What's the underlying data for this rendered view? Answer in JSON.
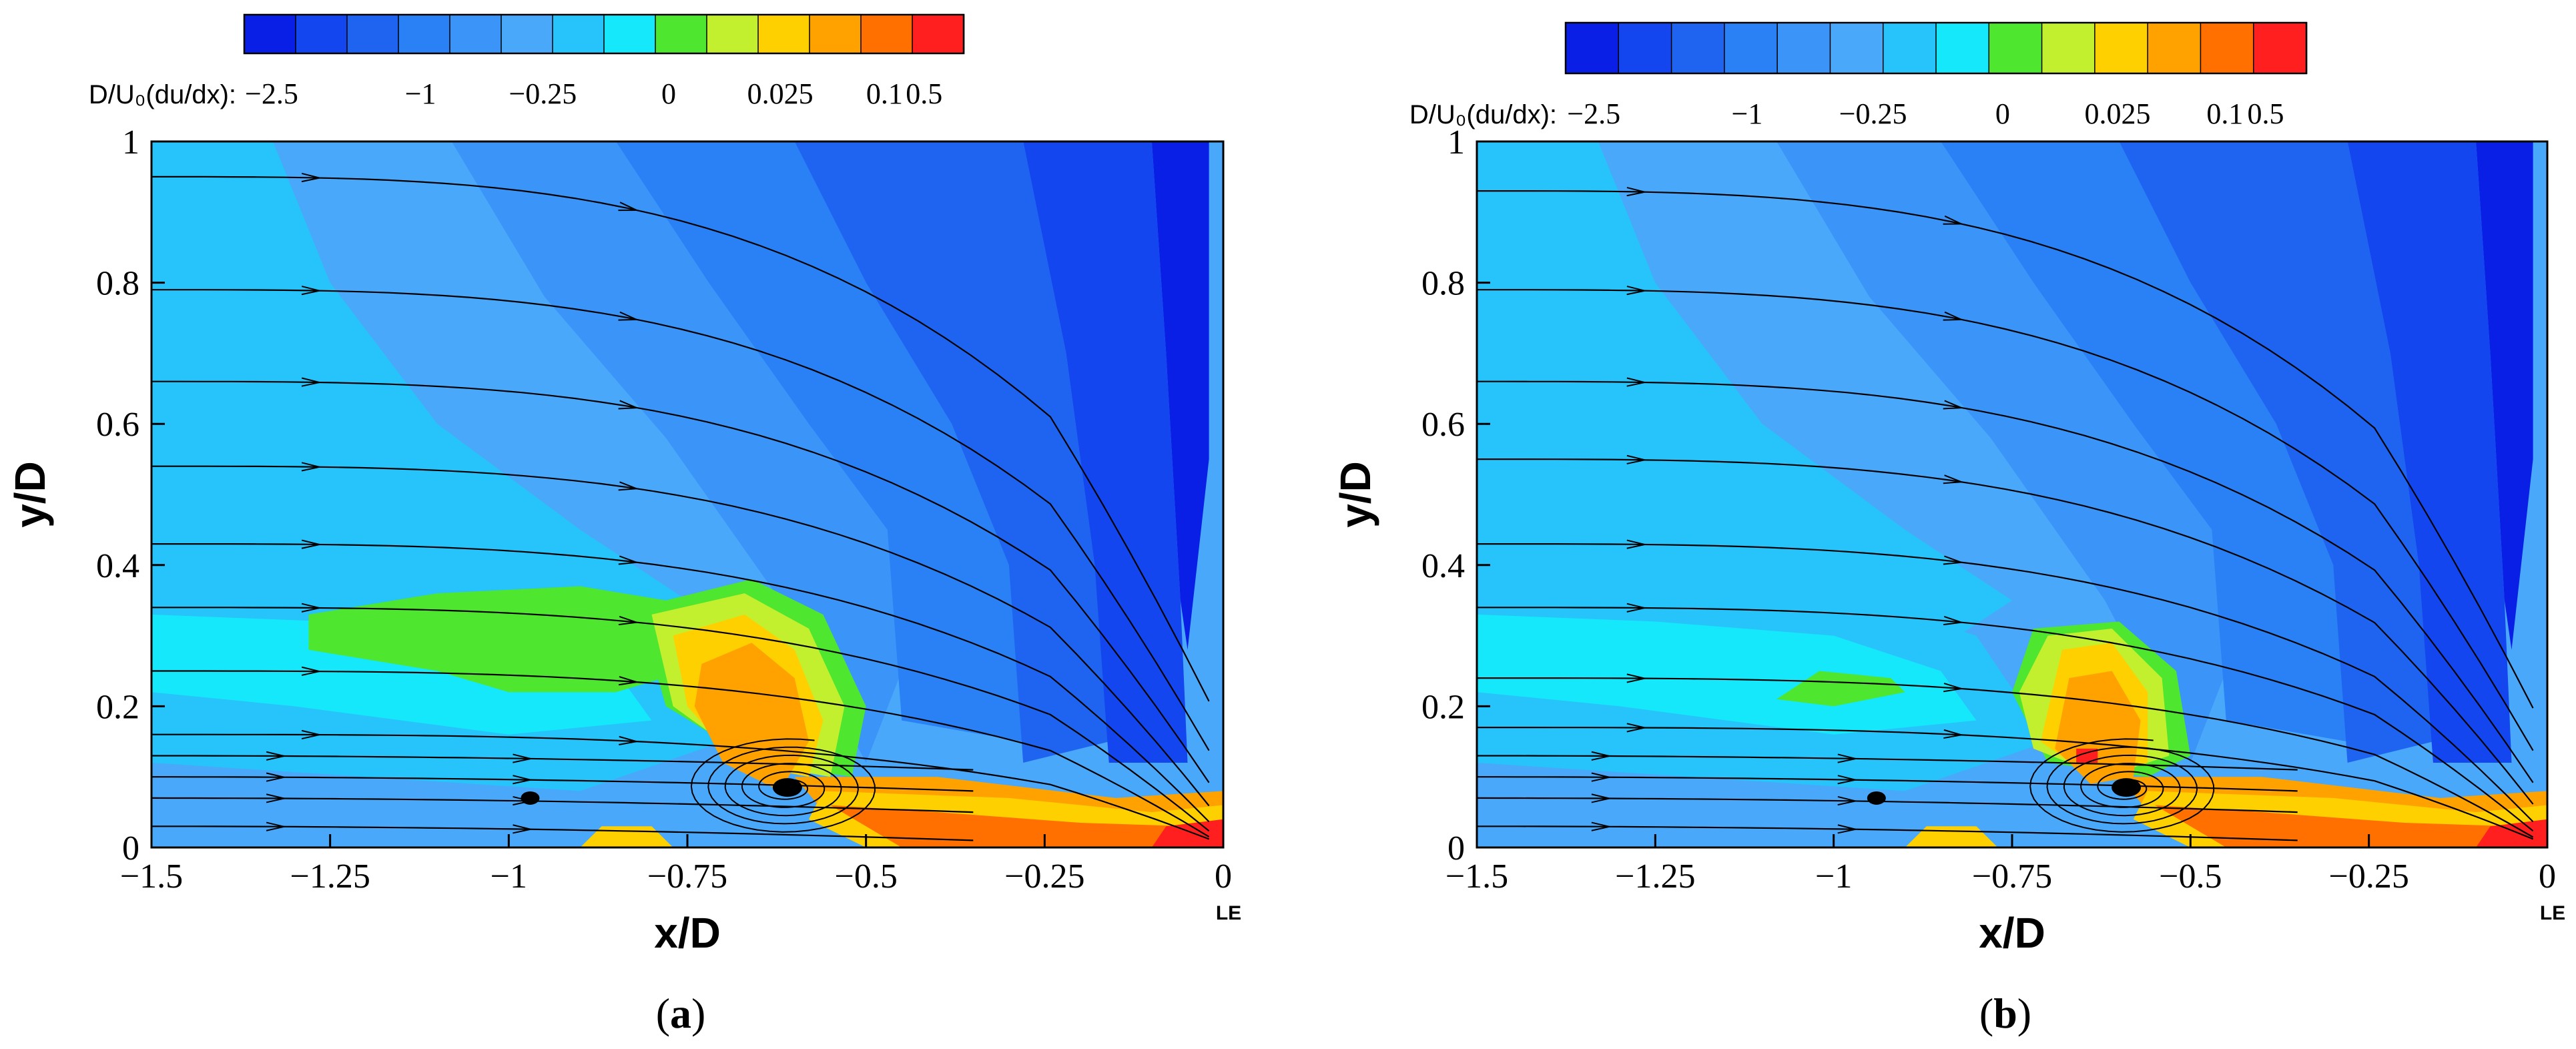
{
  "colorbar": {
    "label": "D/U₀(du/dx):",
    "tick_labels": [
      "−2.5",
      "−1",
      "−0.25",
      "0",
      "0.025",
      "0.1",
      "0.5"
    ],
    "colors": [
      "#0a1fe6",
      "#1446f0",
      "#1f64f0",
      "#2a80f5",
      "#3b94f7",
      "#4aa8fa",
      "#27c3fb",
      "#15e8fa",
      "#4ee62e",
      "#c2f02e",
      "#ffd000",
      "#ffa200",
      "#ff7000",
      "#ff1f1f"
    ]
  },
  "axes": {
    "xlabel": "x/D",
    "ylabel": "y/D",
    "x_ticks": [
      "−1.5",
      "−1.25",
      "−1",
      "−0.75",
      "−0.5",
      "−0.25",
      "0"
    ],
    "y_ticks": [
      "0",
      "0.2",
      "0.4",
      "0.6",
      "0.8",
      "1"
    ],
    "le_label": "LE"
  },
  "panels": [
    {
      "label": "(a)",
      "letter": "a",
      "paren_open": "(",
      "paren_close": ")"
    },
    {
      "label": "(b)",
      "letter": "b",
      "paren_open": "(",
      "paren_close": ")"
    }
  ],
  "chart_data": [
    {
      "type": "heatmap",
      "title": "",
      "xlabel": "x/D",
      "ylabel": "y/D",
      "xlim": [
        -1.5,
        0
      ],
      "ylim": [
        0,
        1
      ],
      "colorbar_label": "D/U₀(du/dx)",
      "colorbar_ticks": [
        -2.5,
        -1,
        -0.25,
        0,
        0.025,
        0.1,
        0.5
      ],
      "features": {
        "vortex_center": [
          -0.61,
          0.085
        ],
        "secondary_vortex": [
          -0.97,
          0.07
        ],
        "positive_region_peak": [
          -0.62,
          0.22
        ],
        "strongest_negative_near": [
          -0.05,
          0.75
        ]
      },
      "streamlines_start_y": [
        0.95,
        0.79,
        0.66,
        0.54,
        0.43,
        0.34,
        0.25,
        0.16,
        0.13,
        0.1,
        0.07,
        0.03
      ]
    },
    {
      "type": "heatmap",
      "title": "",
      "xlabel": "x/D",
      "ylabel": "y/D",
      "xlim": [
        -1.5,
        0
      ],
      "ylim": [
        0,
        1
      ],
      "colorbar_label": "D/U₀(du/dx)",
      "colorbar_ticks": [
        -2.5,
        -1,
        -0.25,
        0,
        0.025,
        0.1,
        0.5
      ],
      "features": {
        "vortex_center": [
          -0.59,
          0.085
        ],
        "secondary_vortex": [
          -0.94,
          0.07
        ],
        "positive_region_peak": [
          -0.62,
          0.2
        ],
        "strongest_negative_near": [
          -0.05,
          0.75
        ]
      },
      "streamlines_start_y": [
        0.93,
        0.79,
        0.66,
        0.55,
        0.43,
        0.34,
        0.24,
        0.17,
        0.13,
        0.1,
        0.07,
        0.03
      ]
    }
  ]
}
